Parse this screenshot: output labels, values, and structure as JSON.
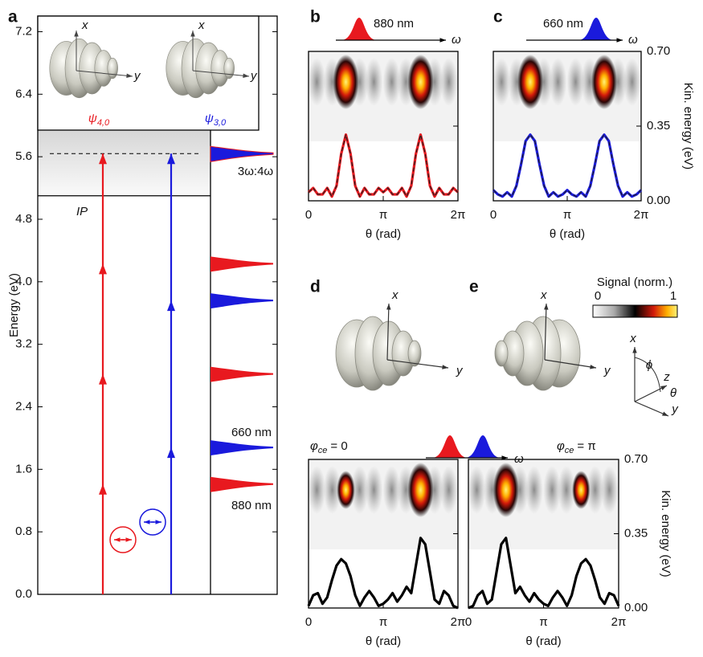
{
  "chart_data": [
    {
      "type": "energy",
      "panel": "a",
      "ylabel": "Energy (eV)",
      "ylim": [
        0,
        7.4
      ],
      "yticks": [
        {
          "value": 0,
          "label": "0.0"
        },
        0.8,
        1.6,
        2.4,
        3.2,
        {
          "value": 4,
          "label": "4.0"
        },
        4.8,
        5.6,
        6.4,
        7.2
      ],
      "ionization_potential": {
        "label": "IP",
        "value": 5.1
      },
      "harmonic_peak": {
        "label": "3ω:4ω",
        "value": 5.64
      },
      "series": [
        {
          "name": "880 nm",
          "color": "#e8191f",
          "photon_energies": [
            1.41,
            2.82,
            4.23,
            5.64
          ],
          "peaks": [
            1.41,
            2.82,
            4.23
          ],
          "state": {
            "symbol": "ψ",
            "sub": "4,0"
          }
        },
        {
          "name": "660 nm",
          "color": "#1a1adc",
          "photon_energies": [
            1.88,
            3.76,
            5.64
          ],
          "peaks": [
            1.88,
            3.76
          ],
          "state": {
            "symbol": "ψ",
            "sub": "3,0"
          }
        }
      ],
      "inset_axes": [
        "x",
        "y"
      ]
    },
    {
      "type": "line",
      "panel": "b",
      "pulses": [
        {
          "name": "880 nm",
          "color": "#e8191f"
        }
      ],
      "omega": "ω",
      "xlabel": "θ (rad)",
      "xlim": [
        0,
        6.2832
      ],
      "xticks": [
        0,
        {
          "value": 3.1416,
          "label": "π"
        },
        {
          "value": 6.2832,
          "label": "2π"
        }
      ],
      "ylim": [
        0,
        0.7
      ],
      "yticks": [
        {
          "value": 0,
          "label": "0.00"
        },
        {
          "value": 0.35,
          "label": "0.35"
        },
        {
          "value": 0.7,
          "label": "0.70"
        }
      ],
      "show_ytick_labels": false,
      "heatmap_blobs": [
        1,
        1
      ],
      "dashed_overlay_color": "#222",
      "x": [
        0,
        0.1963,
        0.3927,
        0.589,
        0.7854,
        0.9817,
        1.1781,
        1.3744,
        1.5708,
        1.7671,
        1.9635,
        2.1598,
        2.3562,
        2.5525,
        2.7489,
        2.9452,
        3.1416,
        3.3379,
        3.5343,
        3.7306,
        3.927,
        4.1233,
        4.3197,
        4.516,
        4.7124,
        4.9087,
        5.1051,
        5.3014,
        5.4978,
        5.6941,
        5.8905,
        6.0868,
        6.2832
      ],
      "series": [
        {
          "color": "#e8191f",
          "values": [
            0.04,
            0.06,
            0.03,
            0.03,
            0.06,
            0.02,
            0.07,
            0.22,
            0.31,
            0.22,
            0.07,
            0.02,
            0.06,
            0.03,
            0.03,
            0.06,
            0.04,
            0.06,
            0.03,
            0.03,
            0.06,
            0.02,
            0.07,
            0.22,
            0.31,
            0.22,
            0.07,
            0.02,
            0.06,
            0.03,
            0.03,
            0.06,
            0.04
          ]
        }
      ]
    },
    {
      "type": "line",
      "panel": "c",
      "pulses": [
        {
          "name": "660 nm",
          "color": "#1a1adc"
        }
      ],
      "omega": "ω",
      "xlabel": "θ (rad)",
      "ylabel": "Kin. energy (eV)",
      "xlim": [
        0,
        6.2832
      ],
      "xticks": [
        0,
        {
          "value": 3.1416,
          "label": "π"
        },
        {
          "value": 6.2832,
          "label": "2π"
        }
      ],
      "ylim": [
        0,
        0.7
      ],
      "yticks": [
        {
          "value": 0,
          "label": "0.00"
        },
        {
          "value": 0.35,
          "label": "0.35"
        },
        {
          "value": 0.7,
          "label": "0.70"
        }
      ],
      "show_ytick_labels": true,
      "heatmap_blobs": [
        1,
        1
      ],
      "dashed_overlay_color": "#222",
      "x": [
        0,
        0.1963,
        0.3927,
        0.589,
        0.7854,
        0.9817,
        1.1781,
        1.3744,
        1.5708,
        1.7671,
        1.9635,
        2.1598,
        2.3562,
        2.5525,
        2.7489,
        2.9452,
        3.1416,
        3.3379,
        3.5343,
        3.7306,
        3.927,
        4.1233,
        4.3197,
        4.516,
        4.7124,
        4.9087,
        5.1051,
        5.3014,
        5.4978,
        5.6941,
        5.8905,
        6.0868,
        6.2832
      ],
      "series": [
        {
          "color": "#1a1adc",
          "values": [
            0.05,
            0.03,
            0.02,
            0.04,
            0.02,
            0.07,
            0.17,
            0.28,
            0.31,
            0.28,
            0.17,
            0.07,
            0.02,
            0.04,
            0.02,
            0.03,
            0.05,
            0.03,
            0.02,
            0.04,
            0.02,
            0.07,
            0.17,
            0.28,
            0.31,
            0.28,
            0.17,
            0.07,
            0.02,
            0.04,
            0.02,
            0.03,
            0.05
          ]
        }
      ]
    },
    {
      "type": "line",
      "annotation": {
        "symbol": "φ",
        "sub": "ce",
        "text": "= 0"
      },
      "pulses": [
        {
          "color": "#e8191f"
        },
        {
          "color": "#1a1adc"
        }
      ],
      "omega": "ω",
      "xlabel": "θ (rad)",
      "xlim": [
        0,
        6.2832
      ],
      "xticks": [
        0,
        {
          "value": 3.1416,
          "label": "π"
        },
        {
          "value": 6.2832,
          "label": "2π"
        }
      ],
      "ylim": [
        0,
        0.7
      ],
      "yticks": [
        {
          "value": 0,
          "label": "0.00"
        },
        {
          "value": 0.35,
          "label": "0.35"
        },
        {
          "value": 0.7,
          "label": "0.70"
        }
      ],
      "show_ytick_labels": false,
      "heatmap_blobs": [
        0.7,
        1
      ],
      "x": [
        0,
        0.1963,
        0.3927,
        0.589,
        0.7854,
        0.9817,
        1.1781,
        1.3744,
        1.5708,
        1.7671,
        1.9635,
        2.1598,
        2.3562,
        2.5525,
        2.7489,
        2.9452,
        3.1416,
        3.3379,
        3.5343,
        3.7306,
        3.927,
        4.1233,
        4.3197,
        4.516,
        4.7124,
        4.9087,
        5.1051,
        5.3014,
        5.4978,
        5.6941,
        5.8905,
        6.0868,
        6.2832
      ],
      "series": [
        {
          "color": "#000000",
          "values": [
            0.01,
            0.06,
            0.07,
            0.02,
            0.05,
            0.13,
            0.2,
            0.23,
            0.21,
            0.15,
            0.06,
            0.01,
            0.05,
            0.08,
            0.05,
            0.01,
            0.02,
            0.04,
            0.07,
            0.03,
            0.06,
            0.1,
            0.07,
            0.2,
            0.33,
            0.3,
            0.17,
            0.04,
            0.02,
            0.08,
            0.06,
            0.01,
            0
          ]
        }
      ]
    },
    {
      "type": "line",
      "annotation": {
        "symbol": "φ",
        "sub": "ce",
        "text": "= π"
      },
      "xlabel": "θ (rad)",
      "ylabel": "Kin. energy (eV)",
      "xlim": [
        0,
        6.2832
      ],
      "xticks": [
        0,
        {
          "value": 3.1416,
          "label": "π"
        },
        {
          "value": 6.2832,
          "label": "2π"
        }
      ],
      "ylim": [
        0,
        0.7
      ],
      "yticks": [
        {
          "value": 0,
          "label": "0.00"
        },
        {
          "value": 0.35,
          "label": "0.35"
        },
        {
          "value": 0.7,
          "label": "0.70"
        }
      ],
      "show_ytick_labels": true,
      "heatmap_blobs": [
        1,
        0.7
      ],
      "x": [
        0,
        0.1963,
        0.3927,
        0.589,
        0.7854,
        0.9817,
        1.1781,
        1.3744,
        1.5708,
        1.7671,
        1.9635,
        2.1598,
        2.3562,
        2.5525,
        2.7489,
        2.9452,
        3.1416,
        3.3379,
        3.5343,
        3.7306,
        3.927,
        4.1233,
        4.3197,
        4.516,
        4.7124,
        4.9087,
        5.1051,
        5.3014,
        5.4978,
        5.6941,
        5.8905,
        6.0868,
        6.2832
      ],
      "series": [
        {
          "color": "#000000",
          "values": [
            0,
            0.01,
            0.06,
            0.08,
            0.02,
            0.04,
            0.17,
            0.3,
            0.33,
            0.2,
            0.07,
            0.1,
            0.06,
            0.03,
            0.07,
            0.04,
            0.02,
            0.01,
            0.05,
            0.08,
            0.05,
            0.01,
            0.06,
            0.15,
            0.21,
            0.23,
            0.2,
            0.13,
            0.05,
            0.02,
            0.07,
            0.06,
            0.01
          ]
        }
      ]
    }
  ],
  "colorbar": {
    "label": "Signal (norm.)",
    "lim": [
      0,
      1
    ],
    "ticks": [
      0,
      1
    ]
  },
  "illustrations": {
    "panel_d": "d",
    "panel_e": "e",
    "orbital_axes": [
      "x",
      "y"
    ],
    "frame_axes": [
      "x",
      "ϕ",
      "z",
      "θ",
      "y"
    ]
  }
}
